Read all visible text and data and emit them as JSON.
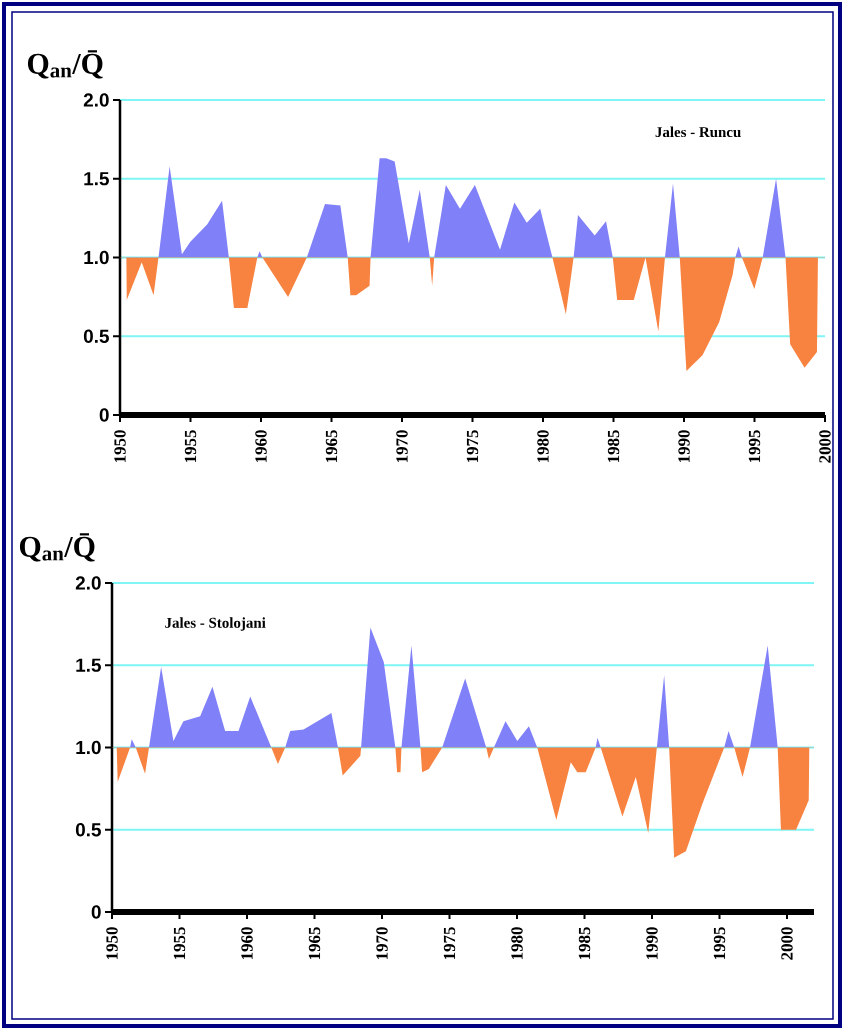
{
  "chart_data": [
    {
      "type": "area",
      "title": "Jales - Runcu",
      "ylabel": "Q$_{an}$/Q̄",
      "x": [
        1950.45,
        1950.48,
        1951.54,
        1952.38,
        1952.73,
        1953.52,
        1954.39,
        1954.99,
        1956.18,
        1957.24,
        1957.72,
        1958.08,
        1959.03,
        1959.74,
        1959.9,
        1960.1,
        1961.92,
        1963.25,
        1964.54,
        1965.63,
        1966.15,
        1966.34,
        1966.75,
        1967.7,
        1967.77,
        1968.41,
        1968.88,
        1969.48,
        1970.48,
        1971.26,
        1971.97,
        1972.14,
        1972.28,
        1973.11,
        1974.11,
        1974.89,
        1975.17,
        1976.95,
        1977.97,
        1978.85,
        1979.8,
        1980.67,
        1981.62,
        1982.17,
        1982.48,
        1983.67,
        1984.47,
        1984.95,
        1985.26,
        1986.44,
        1987.27,
        1988.18,
        1988.65,
        1989.22,
        1989.7,
        1990.17,
        1991.31,
        1992.5,
        1993.45,
        1993.64,
        1993.87,
        1994.11,
        1994.99,
        1995.58,
        1996.53,
        1997.2,
        1997.53,
        1998.55,
        1999.43,
        1999.5
      ],
      "values": [
        1.0,
        0.73,
        0.97,
        0.76,
        1.0,
        1.58,
        1.02,
        1.1,
        1.21,
        1.36,
        1.0,
        0.68,
        0.68,
        1.0,
        1.04,
        1.0,
        0.75,
        1.0,
        1.34,
        1.33,
        1.0,
        0.76,
        0.76,
        0.82,
        1.0,
        1.63,
        1.63,
        1.61,
        1.09,
        1.43,
        1.0,
        0.82,
        1.0,
        1.46,
        1.31,
        1.42,
        1.46,
        1.05,
        1.35,
        1.22,
        1.31,
        1.0,
        0.64,
        1.0,
        1.27,
        1.14,
        1.23,
        1.0,
        0.73,
        0.73,
        1.0,
        0.53,
        1.0,
        1.47,
        1.0,
        0.28,
        0.38,
        0.59,
        0.89,
        1.0,
        1.07,
        1.0,
        0.8,
        1.0,
        1.5,
        1.0,
        0.45,
        0.3,
        0.4,
        1.0
      ],
      "color": "#8080f8",
      "ref_lines": [
        {
          "axis": "y",
          "value": 1.0,
          "color": "#f8823f"
        }
      ],
      "xlim": [
        1950,
        2000
      ],
      "ylim": [
        0,
        2
      ],
      "xticks": [
        1950,
        1955,
        1960,
        1965,
        1970,
        1975,
        1980,
        1985,
        1990,
        1995,
        2000
      ],
      "yticks": [
        0,
        {
          "value": 0.5,
          "label": "0.5"
        },
        {
          "value": 1,
          "label": "1.0"
        },
        {
          "value": 1.5,
          "label": "1.5"
        },
        {
          "value": 2,
          "label": "2.0"
        }
      ],
      "grid": "y"
    },
    {
      "type": "area",
      "title": "Jales - Stolojani",
      "ylabel": "Q$_{an}$/Q̄",
      "x": [
        1950.35,
        1950.42,
        1951.34,
        1951.46,
        1951.76,
        1952.45,
        1952.74,
        1953.64,
        1954.55,
        1955.29,
        1956.53,
        1957.44,
        1958.38,
        1959.37,
        1960.24,
        1961.8,
        1962.29,
        1962.83,
        1963.2,
        1964.19,
        1966.25,
        1966.74,
        1967.09,
        1968.4,
        1968.45,
        1969.14,
        1970.13,
        1970.99,
        1971.12,
        1971.37,
        1971.44,
        1972.18,
        1972.85,
        1972.97,
        1973.47,
        1974.46,
        1976.16,
        1977.72,
        1977.92,
        1978.29,
        1979.15,
        1980.02,
        1980.88,
        1981.5,
        1982.91,
        1983.98,
        1984.47,
        1985.09,
        1985.83,
        1985.96,
        1986.2,
        1987.81,
        1988.8,
        1989.72,
        1990.36,
        1990.9,
        1991.27,
        1991.64,
        1992.51,
        1993.74,
        1995.35,
        1995.67,
        1996.09,
        1996.71,
        1997.26,
        1998.57,
        1999.31,
        1999.55,
        2000.67,
        2001.61,
        2001.65
      ],
      "values": [
        1.0,
        0.79,
        1.0,
        1.05,
        1.0,
        0.84,
        1.0,
        1.49,
        1.04,
        1.16,
        1.19,
        1.37,
        1.1,
        1.1,
        1.31,
        1.0,
        0.9,
        1.0,
        1.1,
        1.11,
        1.21,
        1.0,
        0.83,
        0.95,
        1.0,
        1.73,
        1.52,
        1.0,
        0.85,
        0.85,
        1.0,
        1.62,
        1.0,
        0.85,
        0.87,
        1.0,
        1.42,
        1.0,
        0.93,
        1.0,
        1.16,
        1.04,
        1.13,
        1.0,
        0.56,
        0.91,
        0.85,
        0.85,
        1.0,
        1.06,
        1.0,
        0.58,
        0.82,
        0.48,
        1.0,
        1.44,
        1.0,
        0.33,
        0.37,
        0.66,
        1.0,
        1.1,
        1.0,
        0.82,
        1.0,
        1.62,
        1.0,
        0.5,
        0.5,
        0.68,
        1.0
      ],
      "color": "#8080f8",
      "ref_lines": [
        {
          "axis": "y",
          "value": 1.0,
          "color": "#f8823f"
        }
      ],
      "xlim": [
        1950,
        2002
      ],
      "ylim": [
        0,
        2
      ],
      "xticks": [
        1950,
        1955,
        1960,
        1965,
        1970,
        1975,
        1980,
        1985,
        1990,
        1995,
        2000
      ],
      "yticks": [
        0,
        {
          "value": 0.5,
          "label": "0.5"
        },
        {
          "value": 1,
          "label": "1.0"
        },
        {
          "value": 1.5,
          "label": "1.5"
        },
        {
          "value": 2,
          "label": "2.0"
        }
      ],
      "grid": "y"
    }
  ]
}
